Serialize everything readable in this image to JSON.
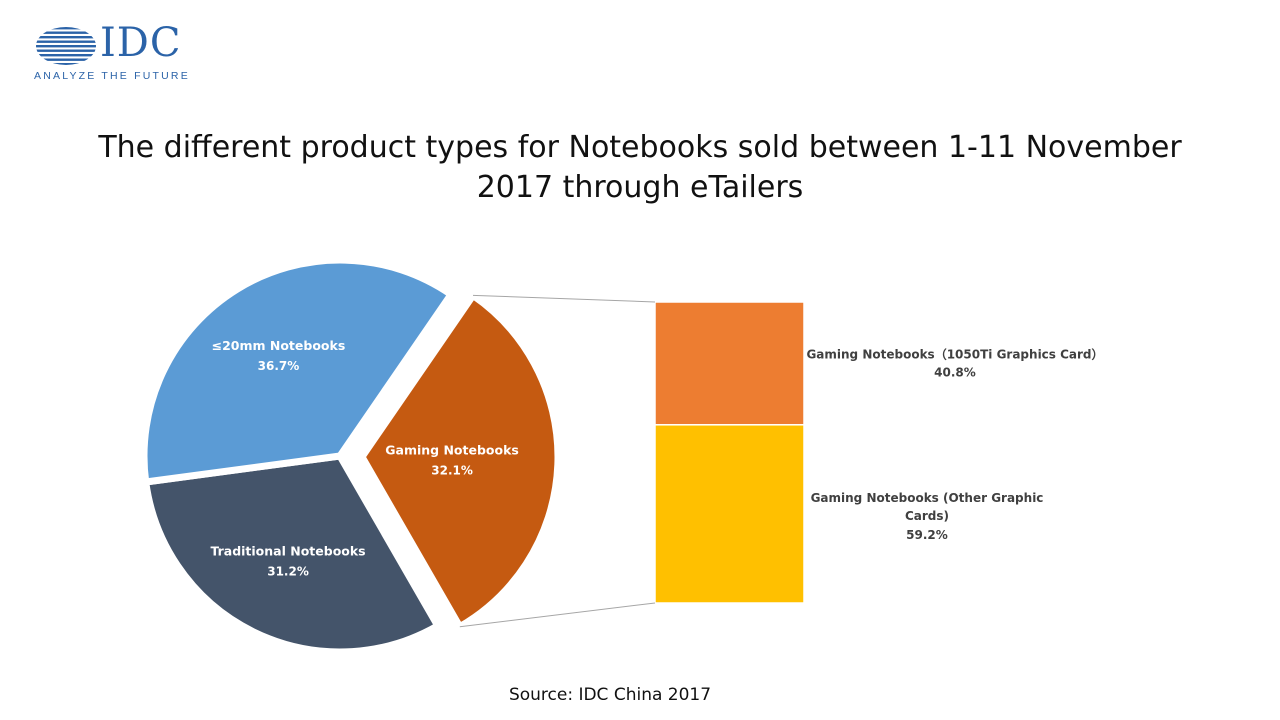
{
  "logo": {
    "name": "IDC",
    "tagline": "ANALYZE THE FUTURE"
  },
  "title": {
    "line1": "The different product types for Notebooks sold between 1-11 November",
    "line2": "2017 through eTailers"
  },
  "source": "Source:  IDC China 2017",
  "colors": {
    "thin": "#5b9bd5",
    "traditional": "#44546a",
    "gaming": "#c55a11",
    "gaming_1050ti": "#ed7d31",
    "gaming_other": "#ffc000",
    "brand": "#2b63a8"
  },
  "chart_data": {
    "type": "bar-of-pie",
    "pie": {
      "slices": [
        {
          "label": "≤20mm Notebooks",
          "value": 36.7,
          "value_label": "36.7%",
          "color": "#5b9bd5"
        },
        {
          "label": "Gaming Notebooks",
          "value": 32.1,
          "value_label": "32.1%",
          "color": "#c55a11",
          "exploded": true
        },
        {
          "label": "Traditional Notebooks",
          "value": 31.2,
          "value_label": "31.2%",
          "color": "#44546a"
        }
      ]
    },
    "breakdown_of": "Gaming Notebooks",
    "bar": {
      "segments": [
        {
          "label": "Gaming Notebooks（1050Ti Graphics Card）",
          "value": 40.8,
          "value_label": "40.8%",
          "color": "#ed7d31"
        },
        {
          "label_lines": [
            "Gaming Notebooks (Other Graphic",
            "Cards)"
          ],
          "value": 59.2,
          "value_label": "59.2%",
          "color": "#ffc000"
        }
      ]
    }
  }
}
